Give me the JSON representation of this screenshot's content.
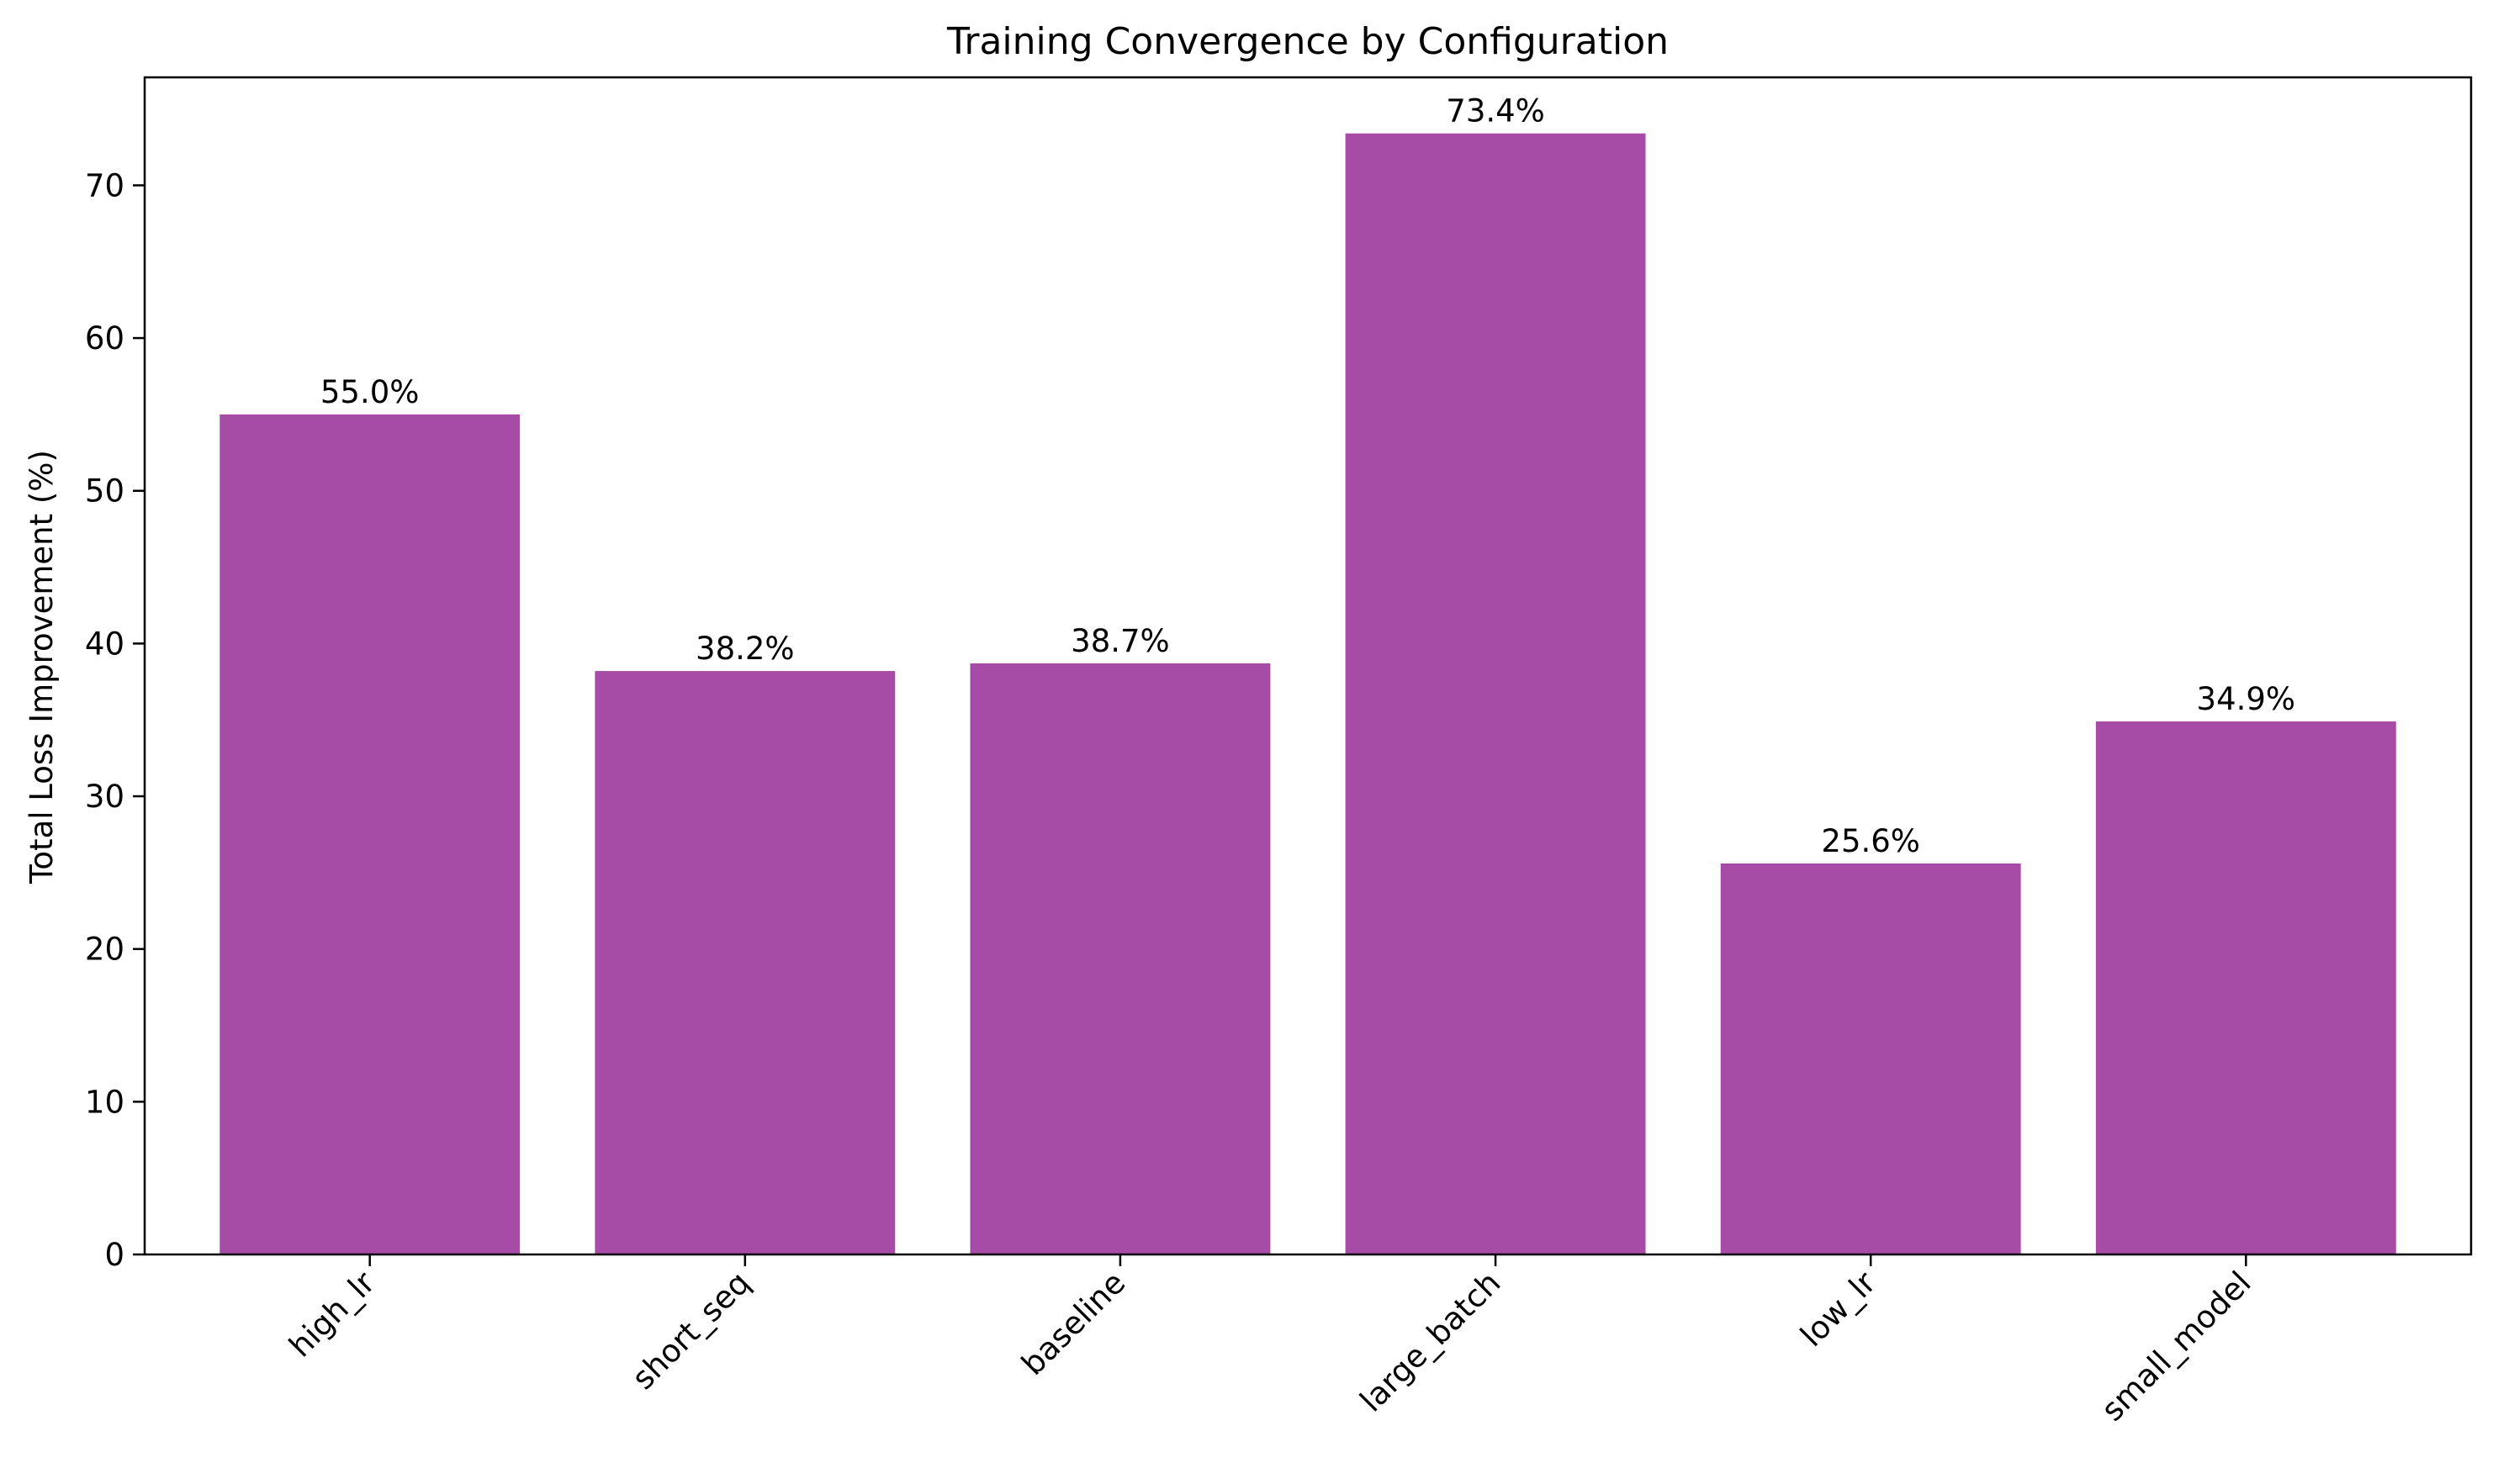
{
  "chart_data": {
    "type": "bar",
    "title": "Training Convergence by Configuration",
    "xlabel": "",
    "ylabel": "Total Loss Improvement (%)",
    "categories": [
      "high_lr",
      "short_seq",
      "baseline",
      "large_batch",
      "low_lr",
      "small_model"
    ],
    "values": [
      55.0,
      38.2,
      38.7,
      73.4,
      25.6,
      34.9
    ],
    "data_labels": [
      "55.0%",
      "38.2%",
      "38.7%",
      "73.4%",
      "25.6%",
      "34.9%"
    ],
    "ylim": [
      0,
      77.07
    ],
    "yticks": [
      0,
      10,
      20,
      30,
      40,
      50,
      60,
      70
    ],
    "grid": false,
    "x_tick_rotation_deg": 45,
    "colors": {
      "bar": "#a64ca6",
      "axis": "#000000",
      "background": "#ffffff"
    }
  }
}
